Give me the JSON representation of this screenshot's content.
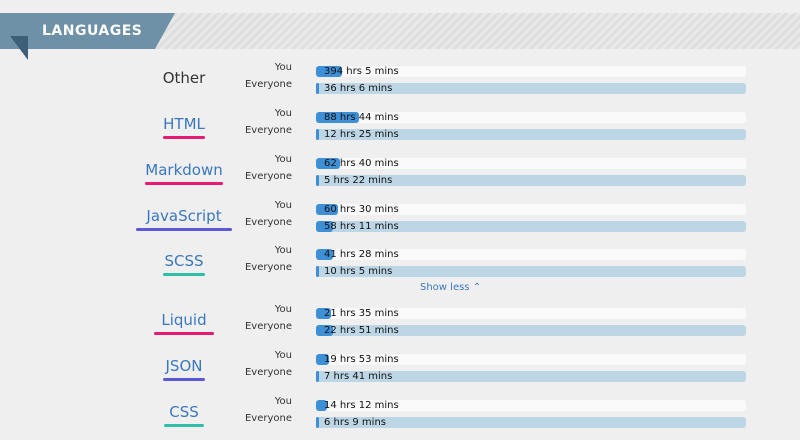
{
  "section": {
    "title": "LANGUAGES"
  },
  "labels": {
    "you": "You",
    "everyone": "Everyone"
  },
  "show_less": "Show less ⌃",
  "languages": [
    {
      "name": "Other",
      "you": "394 hrs 5 mins",
      "everyone": "36 hrs 6 mins",
      "you_frac": 0.06,
      "everyone_frac": 0.008,
      "underline": ""
    },
    {
      "name": "HTML",
      "you": "88 hrs 44 mins",
      "everyone": "12 hrs 25 mins",
      "you_frac": 0.1,
      "everyone_frac": 0.008,
      "underline": "#e61a73"
    },
    {
      "name": "Markdown",
      "you": "62 hrs 40 mins",
      "everyone": "5 hrs 22 mins",
      "you_frac": 0.055,
      "everyone_frac": 0.005,
      "underline": "#e61a73"
    },
    {
      "name": "JavaScript",
      "you": "60 hrs 30 mins",
      "everyone": "58 hrs 11 mins",
      "you_frac": 0.05,
      "everyone_frac": 0.04,
      "underline": "#5a5ad6"
    },
    {
      "name": "SCSS",
      "you": "41 hrs 28 mins",
      "everyone": "10 hrs 5 mins",
      "you_frac": 0.04,
      "everyone_frac": 0.005,
      "underline": "#2fbfa8"
    },
    {
      "name": "Liquid",
      "you": "21 hrs 35 mins",
      "everyone": "22 hrs 51 mins",
      "you_frac": 0.035,
      "everyone_frac": 0.04,
      "underline": "#e61a73"
    },
    {
      "name": "JSON",
      "you": "19 hrs 53 mins",
      "everyone": "7 hrs 41 mins",
      "you_frac": 0.03,
      "everyone_frac": 0.005,
      "underline": "#5a5ad6"
    },
    {
      "name": "CSS",
      "you": "14 hrs 12 mins",
      "everyone": "6 hrs 9 mins",
      "you_frac": 0.025,
      "everyone_frac": 0.005,
      "underline": "#2fbfa8"
    }
  ]
}
